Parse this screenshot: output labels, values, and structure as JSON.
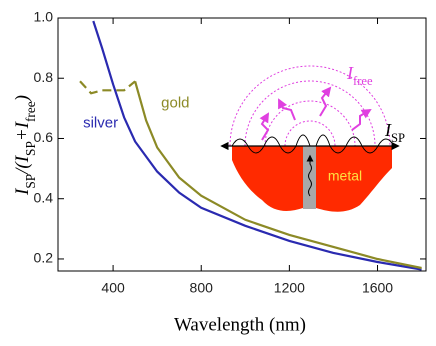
{
  "chart_data": {
    "type": "line",
    "xlabel": "Wavelength (nm)",
    "ylabel": [
      {
        "t": "I"
      },
      {
        "t": "SP",
        "sub": true
      },
      {
        "t": "/("
      },
      {
        "t": "I"
      },
      {
        "t": "SP",
        "sub": true
      },
      {
        "t": "+"
      },
      {
        "t": "I"
      },
      {
        "t": "free",
        "sub": true
      },
      {
        "t": ")"
      }
    ],
    "xlim": [
      150,
      1820
    ],
    "ylim": [
      0.16,
      1.0
    ],
    "xticks": [
      400,
      800,
      1200,
      1600
    ],
    "yticks": [
      0.2,
      0.4,
      0.6,
      0.8,
      {
        "value": 1,
        "label": "1.0"
      }
    ],
    "series": [
      {
        "name": "silver",
        "color": "#2a2ab0",
        "style": "solid",
        "x": [
          310,
          350,
          400,
          450,
          500,
          600,
          700,
          800,
          1000,
          1200,
          1400,
          1600,
          1800
        ],
        "values": [
          0.99,
          0.9,
          0.78,
          0.67,
          0.59,
          0.49,
          0.42,
          0.37,
          0.31,
          0.26,
          0.22,
          0.19,
          0.165
        ]
      },
      {
        "color": "#8c8a26",
        "style": "dashed",
        "x": [
          250,
          300,
          350,
          400,
          450,
          500
        ],
        "values": [
          0.79,
          0.75,
          0.76,
          0.76,
          0.76,
          0.79
        ]
      },
      {
        "name": "gold",
        "color": "#8c8a26",
        "style": "solid",
        "x": [
          500,
          550,
          600,
          700,
          800,
          1000,
          1200,
          1400,
          1600,
          1800
        ],
        "values": [
          0.79,
          0.66,
          0.57,
          0.47,
          0.41,
          0.33,
          0.28,
          0.24,
          0.2,
          0.17
        ]
      }
    ],
    "annotations": {
      "free": [
        {
          "t": "I"
        },
        {
          "t": "free",
          "sub": true
        }
      ],
      "sp": [
        {
          "t": "I"
        },
        {
          "t": "SP",
          "sub": true
        }
      ],
      "metal": "metal"
    }
  }
}
